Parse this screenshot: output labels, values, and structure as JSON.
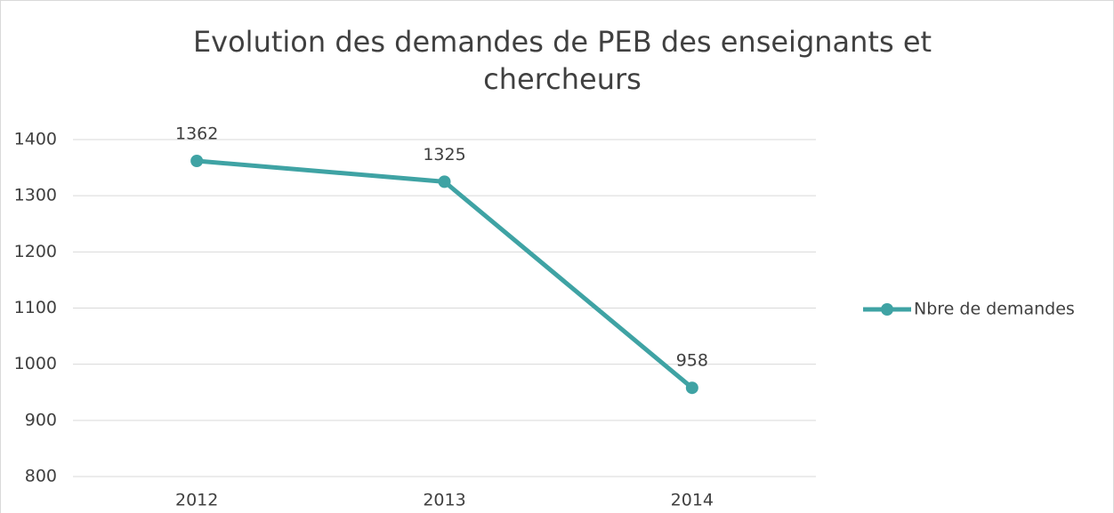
{
  "chart_data": {
    "type": "line",
    "title": "Evolution des demandes de PEB des enseignants et chercheurs",
    "categories": [
      "2012",
      "2013",
      "2014"
    ],
    "series": [
      {
        "name": "Nbre de demandes",
        "color": "#3fa3a4",
        "values": [
          1362,
          1325,
          958
        ]
      }
    ],
    "ylim": [
      800,
      1400
    ],
    "yticks": [
      800,
      900,
      1000,
      1100,
      1200,
      1300,
      1400
    ],
    "grid": true,
    "legend": "right",
    "data_labels": true
  }
}
